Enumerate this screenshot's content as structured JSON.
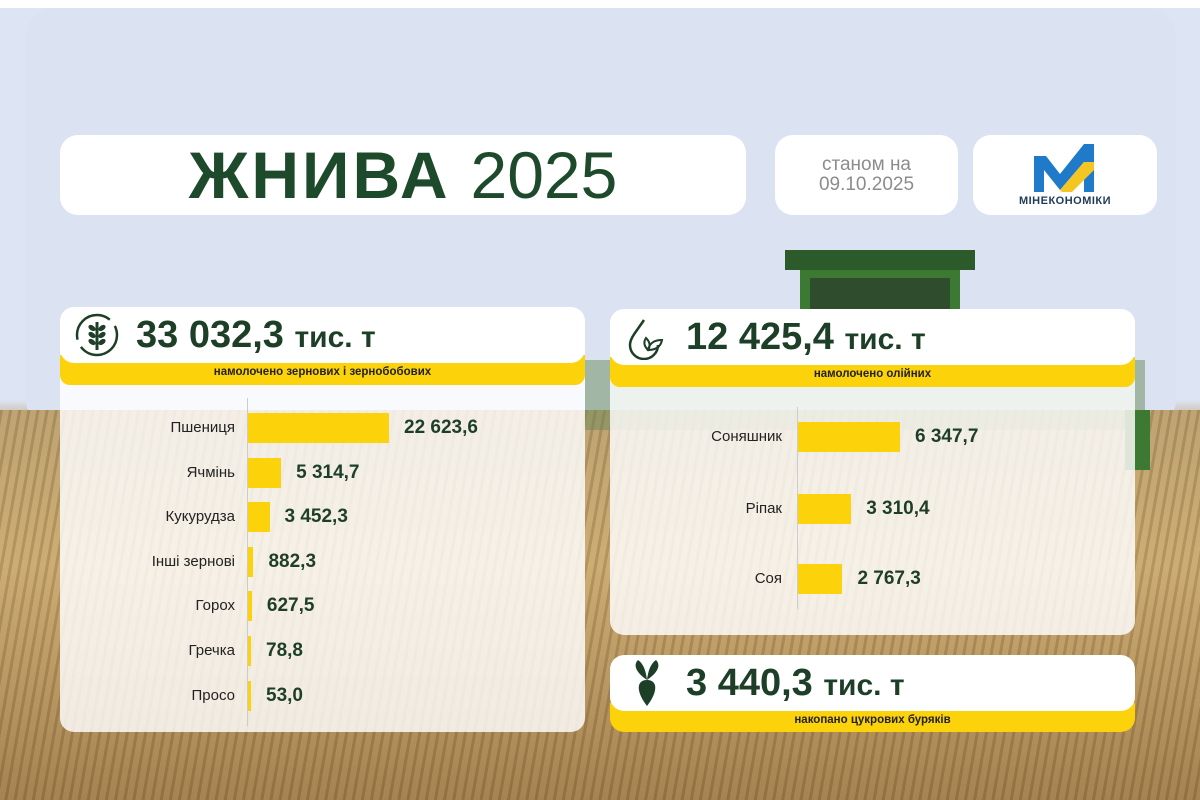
{
  "header": {
    "title_bold": "ЖНИВА",
    "title_year": "2025",
    "date_label": "станом на",
    "date": "09.10.2025",
    "logo_text": "МІНЕКОНОМІКИ"
  },
  "colors": {
    "accent": "#fcd20a",
    "text_green": "#1e3f27",
    "logo_blue": "#1f7ac9",
    "logo_yellow": "#f3c623"
  },
  "chart_data": [
    {
      "type": "bar",
      "orientation": "horizontal",
      "total": "33 032,3",
      "unit": "тис. т",
      "subtitle": "намолочено зернових і зернобобових",
      "icon": "wheat-icon",
      "categories": [
        "Пшениця",
        "Ячмінь",
        "Кукурудза",
        "Інші зернові",
        "Горох",
        "Гречка",
        "Просо"
      ],
      "values": [
        22623.6,
        5314.7,
        3452.3,
        882.3,
        627.5,
        78.8,
        53.0
      ],
      "labels": [
        "22 623,6",
        "5 314,7",
        "3 452,3",
        "882,3",
        "627,5",
        "78,8",
        "53,0"
      ]
    },
    {
      "type": "bar",
      "orientation": "horizontal",
      "total": "12 425,4",
      "unit": "тис. т",
      "subtitle": "намолочено олійних",
      "icon": "oil-drop-icon",
      "categories": [
        "Соняшник",
        "Ріпак",
        "Соя"
      ],
      "values": [
        6347.7,
        3310.4,
        2767.3
      ],
      "labels": [
        "6 347,7",
        "3 310,4",
        "2 767,3"
      ]
    }
  ],
  "sugar": {
    "total": "3 440,3",
    "unit": "тис. т",
    "subtitle": "накопано цукрових буряків",
    "icon": "sugar-beet-icon"
  }
}
